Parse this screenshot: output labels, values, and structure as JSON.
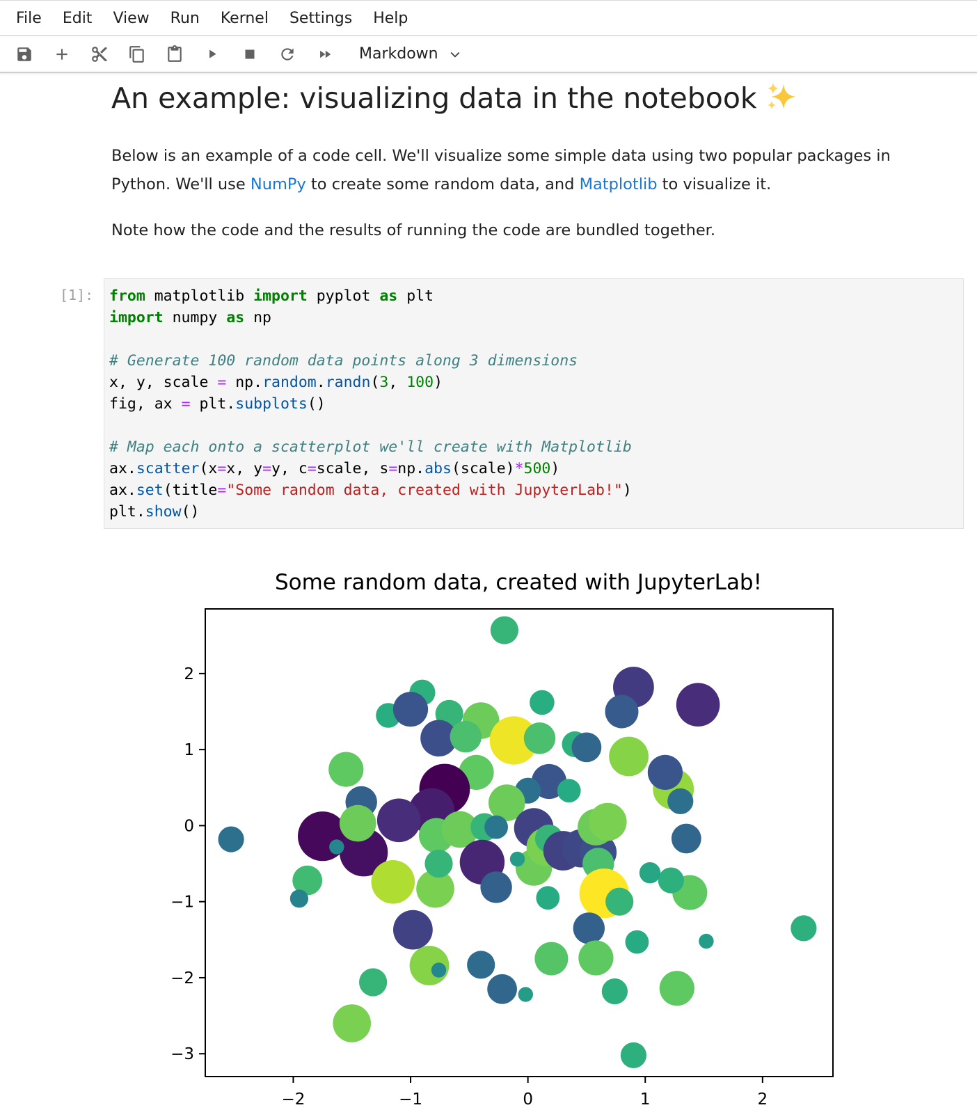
{
  "menubar": {
    "items": [
      "File",
      "Edit",
      "View",
      "Run",
      "Kernel",
      "Settings",
      "Help"
    ]
  },
  "toolbar": {
    "buttons": [
      "save-icon",
      "add-icon",
      "cut-icon",
      "copy-icon",
      "paste-icon",
      "run-icon",
      "stop-icon",
      "restart-icon",
      "fast-forward-icon"
    ],
    "cell_type": "Markdown"
  },
  "notebook": {
    "title": "An example: visualizing data in the notebook",
    "title_emoji": "sparkles-icon",
    "para1_a": "Below is an example of a code cell. We'll visualize some simple data using two popular packages in Python. We'll use ",
    "link_numpy": "NumPy",
    "para1_b": " to create some random data, and ",
    "link_matplotlib": "Matplotlib",
    "para1_c": " to visualize it.",
    "para2": "Note how the code and the results of running the code are bundled together.",
    "prompt": "[1]:",
    "code_lines": [
      "from matplotlib import pyplot as plt",
      "import numpy as np",
      "",
      "# Generate 100 random data points along 3 dimensions",
      "x, y, scale = np.random.randn(3, 100)",
      "fig, ax = plt.subplots()",
      "",
      "# Map each onto a scatterplot we'll create with Matplotlib",
      "ax.scatter(x=x, y=y, c=scale, s=np.abs(scale)*500)",
      "ax.set(title=\"Some random data, created with JupyterLab!\")",
      "plt.show()"
    ]
  },
  "colors": {
    "link": "#1976d2",
    "code_bg": "#f5f5f5",
    "keyword": "#008000",
    "comment": "#408080",
    "string": "#ba2121"
  },
  "chart_data": {
    "type": "scatter",
    "title": "Some random data, created with JupyterLab!",
    "xlabel": "",
    "ylabel": "",
    "xlim": [
      -2.75,
      2.6
    ],
    "ylim": [
      -3.3,
      2.85
    ],
    "xticks": [
      -2,
      -1,
      0,
      1,
      2
    ],
    "yticks": [
      -3,
      -2,
      -1,
      0,
      1,
      2
    ],
    "xtick_labels": [
      "−2",
      "−1",
      "0",
      "1",
      "2"
    ],
    "ytick_labels": [
      "−3",
      "−2",
      "−1",
      "0",
      "1",
      "2"
    ],
    "colormap": "viridis",
    "grid": false,
    "points": [
      {
        "x": -0.2,
        "y": 2.57,
        "c": 0.7
      },
      {
        "x": -0.9,
        "y": 1.75,
        "c": 0.6
      },
      {
        "x": 0.12,
        "y": 1.62,
        "c": 0.55
      },
      {
        "x": -1.19,
        "y": 1.45,
        "c": 0.55
      },
      {
        "x": -1.0,
        "y": 1.53,
        "c": -1.1
      },
      {
        "x": -0.67,
        "y": 1.47,
        "c": 0.7
      },
      {
        "x": -0.4,
        "y": 1.38,
        "c": 1.2
      },
      {
        "x": -0.76,
        "y": 1.15,
        "c": -1.2
      },
      {
        "x": -0.53,
        "y": 1.17,
        "c": 0.9
      },
      {
        "x": -0.12,
        "y": 1.12,
        "c": 2.1
      },
      {
        "x": 0.1,
        "y": 1.15,
        "c": 0.9
      },
      {
        "x": 0.4,
        "y": 1.07,
        "c": 0.6
      },
      {
        "x": 0.5,
        "y": 1.03,
        "c": -0.8
      },
      {
        "x": 0.9,
        "y": 1.82,
        "c": -1.5
      },
      {
        "x": 0.8,
        "y": 1.5,
        "c": -1.0
      },
      {
        "x": 1.45,
        "y": 1.59,
        "c": -1.7
      },
      {
        "x": 0.86,
        "y": 0.91,
        "c": 1.4
      },
      {
        "x": -1.55,
        "y": 0.74,
        "c": 1.1
      },
      {
        "x": -0.44,
        "y": 0.7,
        "c": 1.1
      },
      {
        "x": 0.18,
        "y": 0.58,
        "c": -1.1
      },
      {
        "x": 0.35,
        "y": 0.46,
        "c": 0.5
      },
      {
        "x": 0.0,
        "y": 0.46,
        "c": -0.6
      },
      {
        "x": -0.18,
        "y": 0.3,
        "c": 1.2
      },
      {
        "x": 1.24,
        "y": 0.48,
        "c": 1.5
      },
      {
        "x": 1.17,
        "y": 0.7,
        "c": -1.1
      },
      {
        "x": 1.3,
        "y": 0.32,
        "c": -0.6
      },
      {
        "x": -1.42,
        "y": 0.31,
        "c": -0.9
      },
      {
        "x": -0.71,
        "y": 0.48,
        "c": -2.3
      },
      {
        "x": -0.82,
        "y": 0.19,
        "c": -1.9
      },
      {
        "x": -1.1,
        "y": 0.07,
        "c": -1.7
      },
      {
        "x": -1.75,
        "y": -0.14,
        "c": -2.2
      },
      {
        "x": -1.4,
        "y": -0.35,
        "c": -2.1
      },
      {
        "x": -1.45,
        "y": 0.03,
        "c": 1.2
      },
      {
        "x": -0.78,
        "y": -0.13,
        "c": 1.1
      },
      {
        "x": -0.58,
        "y": -0.05,
        "c": 1.2
      },
      {
        "x": -0.37,
        "y": -0.02,
        "c": 0.7
      },
      {
        "x": -0.39,
        "y": -0.48,
        "c": -1.8
      },
      {
        "x": -0.27,
        "y": -0.81,
        "c": -0.9
      },
      {
        "x": 0.05,
        "y": -0.03,
        "c": -1.4
      },
      {
        "x": 0.05,
        "y": -0.55,
        "c": 1.2
      },
      {
        "x": 0.15,
        "y": -0.28,
        "c": 1.3
      },
      {
        "x": 0.18,
        "y": -0.17,
        "c": 0.7
      },
      {
        "x": 0.3,
        "y": -0.33,
        "c": -1.4
      },
      {
        "x": 0.45,
        "y": -0.3,
        "c": -1.3
      },
      {
        "x": 0.6,
        "y": -0.35,
        "c": -1.2
      },
      {
        "x": 0.6,
        "y": -0.5,
        "c": 0.9
      },
      {
        "x": 0.58,
        "y": -0.02,
        "c": 1.2
      },
      {
        "x": 0.68,
        "y": 0.05,
        "c": 1.3
      },
      {
        "x": 0.65,
        "y": -0.89,
        "c": 2.2
      },
      {
        "x": 0.78,
        "y": -1.0,
        "c": 0.7
      },
      {
        "x": 0.52,
        "y": -1.35,
        "c": -0.9
      },
      {
        "x": 0.58,
        "y": -1.74,
        "c": 1.1
      },
      {
        "x": 0.2,
        "y": -1.75,
        "c": 1.0
      },
      {
        "x": 0.17,
        "y": -0.95,
        "c": 0.5
      },
      {
        "x": 1.35,
        "y": -0.17,
        "c": -0.8
      },
      {
        "x": 1.38,
        "y": -0.88,
        "c": 1.1
      },
      {
        "x": 1.22,
        "y": -0.72,
        "c": 0.6
      },
      {
        "x": 1.04,
        "y": -0.62,
        "c": 0.4
      },
      {
        "x": 0.93,
        "y": -1.53,
        "c": 0.5
      },
      {
        "x": 1.52,
        "y": -1.52,
        "c": 0.2
      },
      {
        "x": 1.27,
        "y": -2.14,
        "c": 1.1
      },
      {
        "x": 0.74,
        "y": -2.18,
        "c": 0.6
      },
      {
        "x": 0.9,
        "y": -3.02,
        "c": 0.6
      },
      {
        "x": 2.35,
        "y": -1.35,
        "c": 0.6
      },
      {
        "x": -2.53,
        "y": -0.18,
        "c": -0.6
      },
      {
        "x": -1.88,
        "y": -0.72,
        "c": 0.8
      },
      {
        "x": -1.95,
        "y": -0.96,
        "c": -0.3
      },
      {
        "x": -1.63,
        "y": -0.28,
        "c": -0.2
      },
      {
        "x": -1.15,
        "y": -0.74,
        "c": 1.7
      },
      {
        "x": -0.79,
        "y": -0.83,
        "c": 1.3
      },
      {
        "x": -0.76,
        "y": -0.5,
        "c": 0.7
      },
      {
        "x": -0.98,
        "y": -1.37,
        "c": -1.4
      },
      {
        "x": -0.84,
        "y": -1.84,
        "c": 1.4
      },
      {
        "x": -0.76,
        "y": -1.9,
        "c": -0.2
      },
      {
        "x": -0.4,
        "y": -1.83,
        "c": -0.7
      },
      {
        "x": -0.22,
        "y": -2.15,
        "c": -0.8
      },
      {
        "x": -0.02,
        "y": -2.22,
        "c": 0.2
      },
      {
        "x": -1.32,
        "y": -2.06,
        "c": 0.7
      },
      {
        "x": -1.5,
        "y": -2.6,
        "c": 1.3
      },
      {
        "x": -0.27,
        "y": -0.02,
        "c": -0.5
      },
      {
        "x": -0.09,
        "y": -0.44,
        "c": 0.2
      }
    ]
  }
}
